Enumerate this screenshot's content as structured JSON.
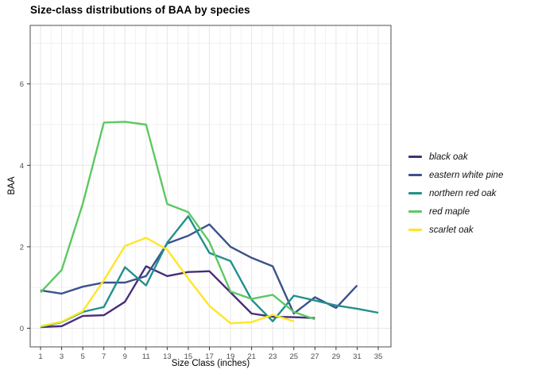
{
  "chart_data": {
    "type": "line",
    "title": "Size-class distributions of BAA by species",
    "xlabel": "Size Class (inches)",
    "ylabel": "BAA",
    "categories": [
      "1",
      "3",
      "5",
      "7",
      "9",
      "11",
      "13",
      "15",
      "17",
      "19",
      "21",
      "23",
      "25",
      "27",
      "29",
      "31",
      "35"
    ],
    "y_ticks": [
      0,
      2,
      4,
      6
    ],
    "ylim": [
      0,
      7.4
    ],
    "grid": "major and minor, light gray on white panel",
    "legend_position": "right",
    "panel_border_color": "#4d4d4d",
    "grid_major_color": "#e6e6e6",
    "grid_minor_color": "#f2f2f2",
    "tick_label_color": "#4d4d4d",
    "series": [
      {
        "name": "black oak",
        "color": "#472d7b",
        "values": [
          0.03,
          0.05,
          0.3,
          0.32,
          0.65,
          1.52,
          1.28,
          1.38,
          1.4,
          0.88,
          0.36,
          0.28,
          0.27,
          0.25,
          null,
          null,
          null
        ]
      },
      {
        "name": "eastern white pine",
        "color": "#3b528b",
        "values": [
          0.93,
          0.85,
          1.02,
          1.12,
          1.12,
          1.28,
          2.08,
          2.27,
          2.55,
          2.0,
          1.73,
          1.52,
          0.36,
          0.76,
          0.5,
          1.05,
          null
        ]
      },
      {
        "name": "northern red oak",
        "color": "#21908c",
        "values": [
          0.03,
          0.15,
          0.4,
          0.52,
          1.5,
          1.05,
          2.1,
          2.75,
          1.85,
          1.65,
          0.7,
          0.17,
          0.8,
          0.68,
          0.56,
          0.48,
          0.38
        ]
      },
      {
        "name": "red maple",
        "color": "#5dc863",
        "values": [
          0.88,
          1.43,
          3.05,
          5.05,
          5.07,
          5.0,
          3.05,
          2.85,
          2.12,
          0.9,
          0.72,
          0.82,
          0.4,
          0.22,
          null,
          null,
          null
        ]
      },
      {
        "name": "scarlet oak",
        "color": "#fde725",
        "values": [
          0.05,
          0.16,
          0.42,
          1.18,
          2.02,
          2.22,
          1.93,
          1.22,
          0.55,
          0.12,
          0.15,
          0.33,
          0.17,
          null,
          null,
          null,
          null
        ]
      }
    ]
  }
}
